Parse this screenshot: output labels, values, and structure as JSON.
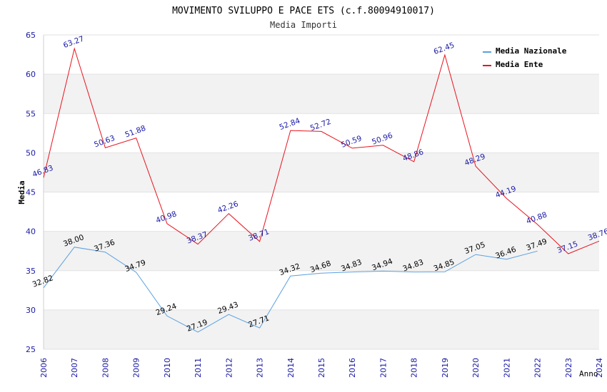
{
  "chart_data": {
    "type": "line",
    "title": "MOVIMENTO SVILUPPO E PACE ETS (c.f.80094910017)",
    "subtitle": "Media Importi",
    "xlabel": "Anno",
    "ylabel": "Media",
    "ylim": [
      25,
      65
    ],
    "yticks": [
      "25",
      "30",
      "35",
      "40",
      "45",
      "50",
      "55",
      "60",
      "65"
    ],
    "categories": [
      "2006",
      "2007",
      "2008",
      "2009",
      "2010",
      "2011",
      "2012",
      "2013",
      "2014",
      "2015",
      "2016",
      "2017",
      "2018",
      "2019",
      "2020",
      "2021",
      "2022",
      "2023",
      "2024"
    ],
    "legend_position": "top-right",
    "series": [
      {
        "name": "Media Nazionale",
        "color": "#5aa0e0",
        "values": [
          32.82,
          38.0,
          37.36,
          34.79,
          29.24,
          27.19,
          29.43,
          27.71,
          34.32,
          34.68,
          34.83,
          34.94,
          34.83,
          34.85,
          37.05,
          36.46,
          37.49,
          null,
          null
        ],
        "labels": [
          "32.82",
          "38.00",
          "37.36",
          "34.79",
          "29.24",
          "27.19",
          "29.43",
          "27.71",
          "34.32",
          "34.68",
          "34.83",
          "34.94",
          "34.83",
          "34.85",
          "37.05",
          "36.46",
          "37.49",
          null,
          null
        ]
      },
      {
        "name": "Media Ente",
        "color": "#e8141e",
        "values": [
          46.83,
          63.27,
          50.63,
          51.88,
          40.98,
          38.37,
          42.26,
          38.71,
          52.84,
          52.72,
          50.59,
          50.96,
          48.86,
          62.45,
          48.29,
          44.19,
          40.88,
          37.15,
          38.76
        ],
        "labels": [
          "46.83",
          "63.27",
          "50.63",
          "51.88",
          "40.98",
          "38.37",
          "42.26",
          "38.71",
          "52.84",
          "52.72",
          "50.59",
          "50.96",
          "48.86",
          "62.45",
          "48.29",
          "44.19",
          "40.88",
          "37.15",
          "38.76"
        ]
      }
    ]
  }
}
